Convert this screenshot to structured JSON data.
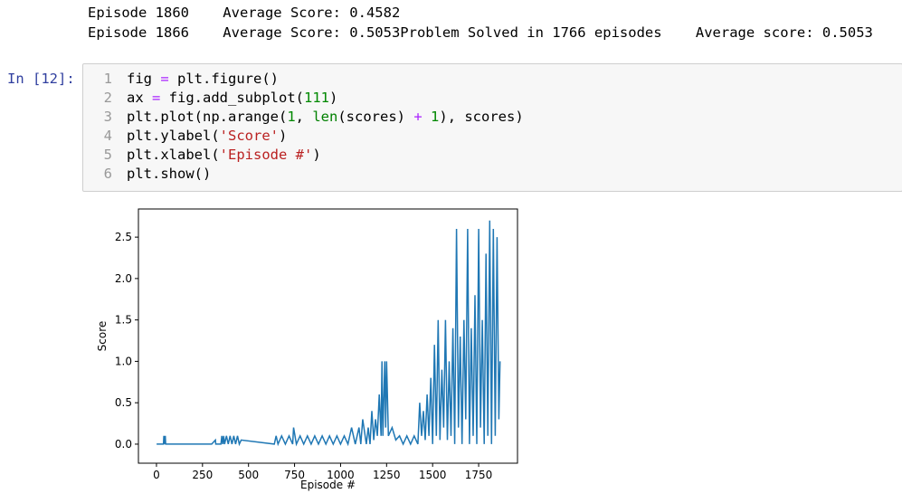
{
  "output_lines": [
    "Episode 1860    Average Score: 0.4582",
    "Episode 1866    Average Score: 0.5053Problem Solved in 1766 episodes    Average score: 0.5053"
  ],
  "cell": {
    "prompt": "In [12]:",
    "lines": [
      {
        "number": "1",
        "tokens": [
          {
            "text": "fig ",
            "color": "#000000"
          },
          {
            "text": "=",
            "color": "#aa22ff"
          },
          {
            "text": " plt.figure()",
            "color": "#000000"
          }
        ]
      },
      {
        "number": "2",
        "tokens": [
          {
            "text": "ax ",
            "color": "#000000"
          },
          {
            "text": "=",
            "color": "#aa22ff"
          },
          {
            "text": " fig.add_subplot(",
            "color": "#000000"
          },
          {
            "text": "111",
            "color": "#008800"
          },
          {
            "text": ")",
            "color": "#000000"
          }
        ]
      },
      {
        "number": "3",
        "tokens": [
          {
            "text": "plt.plot(np.arange(",
            "color": "#000000"
          },
          {
            "text": "1",
            "color": "#008800"
          },
          {
            "text": ", ",
            "color": "#000000"
          },
          {
            "text": "len",
            "color": "#008000"
          },
          {
            "text": "(scores) ",
            "color": "#000000"
          },
          {
            "text": "+",
            "color": "#aa22ff"
          },
          {
            "text": " ",
            "color": "#000000"
          },
          {
            "text": "1",
            "color": "#008800"
          },
          {
            "text": "), scores)",
            "color": "#000000"
          }
        ]
      },
      {
        "number": "4",
        "tokens": [
          {
            "text": "plt.ylabel(",
            "color": "#000000"
          },
          {
            "text": "'Score'",
            "color": "#ba2121"
          },
          {
            "text": ")",
            "color": "#000000"
          }
        ]
      },
      {
        "number": "5",
        "tokens": [
          {
            "text": "plt.xlabel(",
            "color": "#000000"
          },
          {
            "text": "'Episode #'",
            "color": "#ba2121"
          },
          {
            "text": ")",
            "color": "#000000"
          }
        ]
      },
      {
        "number": "6",
        "tokens": [
          {
            "text": "plt.show()",
            "color": "#000000"
          }
        ]
      }
    ]
  },
  "chart_data": {
    "type": "line",
    "xlabel": "Episode #",
    "ylabel": "Score",
    "color": "#1f77b4",
    "x": [
      1,
      38,
      40,
      42,
      44,
      46,
      48,
      50,
      300,
      320,
      322,
      350,
      355,
      360,
      365,
      370,
      380,
      390,
      400,
      410,
      420,
      430,
      440,
      450,
      460,
      640,
      650,
      660,
      680,
      700,
      720,
      740,
      745,
      760,
      780,
      800,
      820,
      840,
      860,
      880,
      900,
      920,
      940,
      960,
      980,
      1000,
      1020,
      1040,
      1060,
      1080,
      1100,
      1110,
      1120,
      1140,
      1150,
      1160,
      1170,
      1180,
      1190,
      1200,
      1210,
      1220,
      1225,
      1230,
      1240,
      1245,
      1250,
      1260,
      1280,
      1300,
      1320,
      1340,
      1360,
      1380,
      1400,
      1420,
      1430,
      1440,
      1450,
      1460,
      1470,
      1480,
      1490,
      1500,
      1510,
      1520,
      1530,
      1540,
      1550,
      1560,
      1570,
      1580,
      1590,
      1600,
      1610,
      1620,
      1630,
      1640,
      1650,
      1660,
      1670,
      1680,
      1690,
      1700,
      1710,
      1720,
      1730,
      1740,
      1750,
      1760,
      1770,
      1780,
      1790,
      1800,
      1810,
      1820,
      1830,
      1840,
      1850,
      1860,
      1866
    ],
    "values": [
      0,
      0,
      0.1,
      0,
      0.1,
      0,
      0.1,
      0,
      0,
      0.05,
      0,
      0,
      0.1,
      0,
      0.1,
      0,
      0.1,
      0,
      0.1,
      0,
      0.1,
      0,
      0.1,
      0,
      0.05,
      0,
      0.1,
      0,
      0.1,
      0,
      0.1,
      0,
      0.2,
      0,
      0.1,
      0,
      0.1,
      0,
      0.1,
      0,
      0.1,
      0,
      0.1,
      0,
      0.1,
      0,
      0.1,
      0,
      0.2,
      0,
      0.2,
      0,
      0.3,
      0,
      0.2,
      0,
      0.4,
      0.05,
      0.3,
      0.1,
      0.6,
      0.1,
      1.0,
      0.1,
      1.0,
      0.2,
      1.0,
      0.1,
      0.2,
      0.05,
      0.1,
      0,
      0.1,
      0,
      0.1,
      0,
      0.5,
      0.1,
      0.4,
      0.05,
      0.6,
      0.1,
      0.8,
      0,
      1.2,
      0.1,
      1.5,
      0.05,
      0.9,
      0.2,
      1.5,
      0.05,
      1.0,
      0.1,
      1.4,
      0,
      2.6,
      0.2,
      1.3,
      0,
      1.5,
      0.3,
      2.6,
      0,
      1.4,
      0.1,
      1.8,
      0,
      2.6,
      0.2,
      1.5,
      0,
      2.3,
      0.1,
      2.7,
      0,
      2.6,
      0.1,
      2.5,
      0.3,
      1.0
    ],
    "xlim": [
      -98,
      1961
    ],
    "ylim": [
      -0.23,
      2.84
    ],
    "xticks": [
      0,
      250,
      500,
      750,
      1000,
      1250,
      1500,
      1750
    ],
    "yticks": [
      {
        "value": 0,
        "label": "0.0"
      },
      {
        "value": 0.5,
        "label": "0.5"
      },
      {
        "value": 1,
        "label": "1.0"
      },
      {
        "value": 1.5,
        "label": "1.5"
      },
      {
        "value": 2,
        "label": "2.0"
      },
      {
        "value": 2.5,
        "label": "2.5"
      }
    ]
  }
}
